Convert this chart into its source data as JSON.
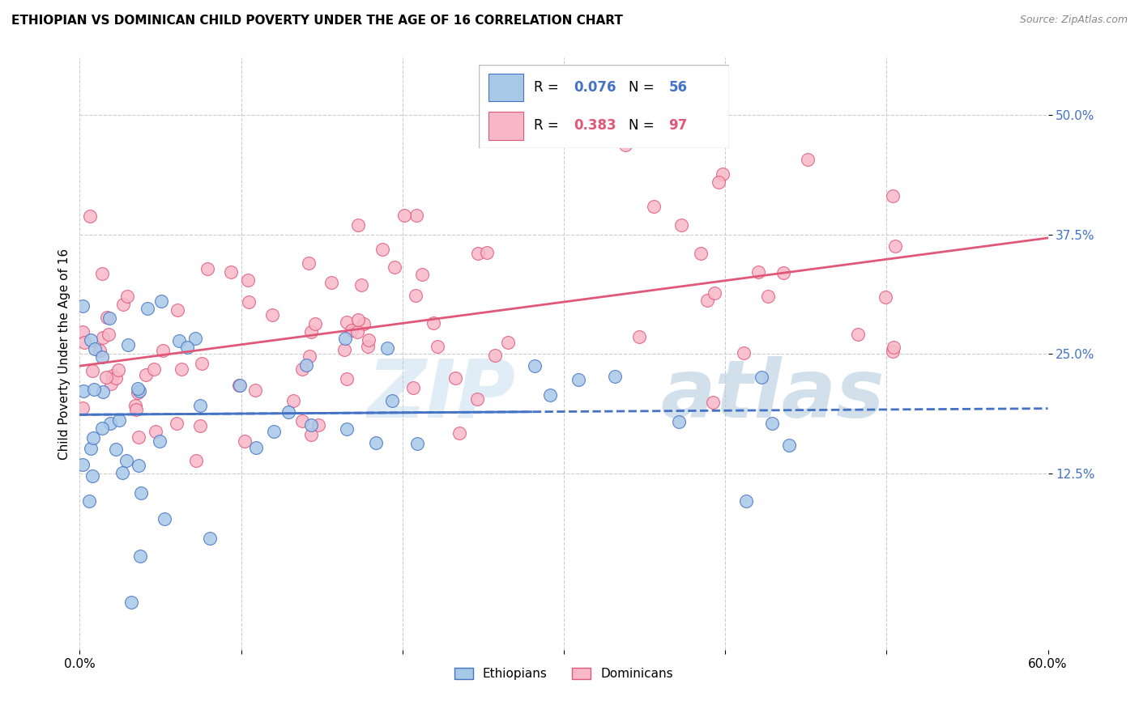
{
  "title": "ETHIOPIAN VS DOMINICAN CHILD POVERTY UNDER THE AGE OF 16 CORRELATION CHART",
  "source": "Source: ZipAtlas.com",
  "ylabel": "Child Poverty Under the Age of 16",
  "xlim": [
    0.0,
    0.6
  ],
  "ylim": [
    -0.06,
    0.56
  ],
  "ytick_values": [
    0.125,
    0.25,
    0.375,
    0.5
  ],
  "ytick_labels": [
    "12.5%",
    "25.0%",
    "37.5%",
    "50.0%"
  ],
  "ethiopian_fill": "#A8C8E8",
  "ethiopian_edge": "#4472C4",
  "dominican_fill": "#F8B8C8",
  "dominican_edge": "#E05878",
  "eth_line_color": "#4472C4",
  "dom_line_color": "#E05878",
  "r_eth": "0.076",
  "n_eth": "56",
  "r_dom": "0.383",
  "n_dom": "97",
  "watermark_zip": "ZIP",
  "watermark_atlas": "atlas"
}
